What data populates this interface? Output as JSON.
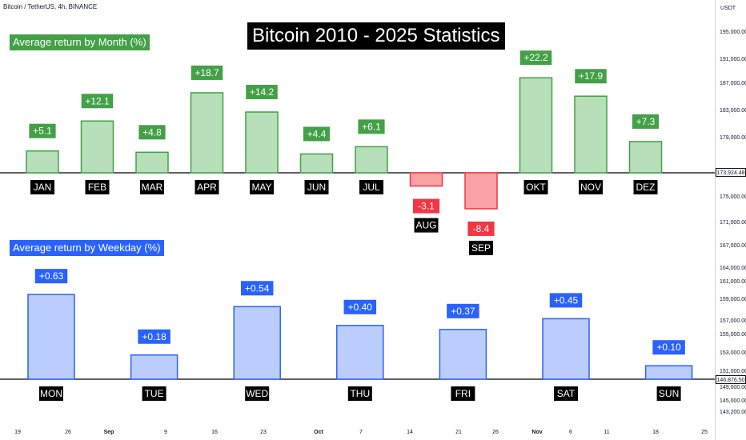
{
  "header": {
    "symbol": "Bitcoin / TetherUS, 4h, BINANCE",
    "title": "Bitcoin 2010 - 2025 Statistics",
    "currency": "USDT"
  },
  "price_axis": {
    "ticks": [
      "195,000.00",
      "191,000.00",
      "187,000.00",
      "183,000.00",
      "179,000.00",
      "175,000.00",
      "171,000.00",
      "167,000.00",
      "164,000.00",
      "161,000.00",
      "159,000.00",
      "157,000.00",
      "155,000.00",
      "153,000.00",
      "151,000.00",
      "149,000.00",
      "145,000.00",
      "143,200.00"
    ],
    "current_price_top": "173,924.48",
    "current_price_bottom": "146,876.50"
  },
  "time_axis": {
    "ticks": [
      {
        "label": "19",
        "bold": false
      },
      {
        "label": "26",
        "bold": false
      },
      {
        "label": "Sep",
        "bold": true
      },
      {
        "label": "9",
        "bold": false
      },
      {
        "label": "16",
        "bold": false
      },
      {
        "label": "23",
        "bold": false
      },
      {
        "label": "Oct",
        "bold": true
      },
      {
        "label": "7",
        "bold": false
      },
      {
        "label": "14",
        "bold": false
      },
      {
        "label": "21",
        "bold": false
      },
      {
        "label": "26",
        "bold": false
      },
      {
        "label": "Nov",
        "bold": true
      },
      {
        "label": "6",
        "bold": false
      },
      {
        "label": "11",
        "bold": false
      },
      {
        "label": "18",
        "bold": false
      },
      {
        "label": "25",
        "bold": false
      }
    ]
  },
  "chart_data": [
    {
      "type": "bar",
      "title": "Average return by Month (%)",
      "categories": [
        "JAN",
        "FEB",
        "MAR",
        "APR",
        "MAY",
        "JUN",
        "JUL",
        "AUG",
        "SEP",
        "OKT",
        "NOV",
        "DEZ"
      ],
      "values": [
        5.1,
        12.1,
        4.8,
        18.7,
        14.2,
        4.4,
        6.1,
        -3.1,
        -8.4,
        22.2,
        17.9,
        7.3
      ],
      "value_labels": [
        "+5.1",
        "+12.1",
        "+4.8",
        "+18.7",
        "+14.2",
        "+4.4",
        "+6.1",
        "-3.1",
        "-8.4",
        "+22.2",
        "+17.9",
        "+7.3"
      ],
      "colors": {
        "positive_fill": "#b7dfb9",
        "positive_stroke": "#43a047",
        "positive_label": "#43a047",
        "negative_fill": "#faa1a4",
        "negative_stroke": "#f23645",
        "negative_label": "#f23645"
      }
    },
    {
      "type": "bar",
      "title": "Average return by Weekday (%)",
      "categories": [
        "MON",
        "TUE",
        "WED",
        "THU",
        "FRI",
        "SAT",
        "SUN"
      ],
      "values": [
        0.63,
        0.18,
        0.54,
        0.4,
        0.37,
        0.45,
        0.1
      ],
      "value_labels": [
        "+0.63",
        "+0.18",
        "+0.54",
        "+0.40",
        "+0.37",
        "+0.45",
        "+0.10"
      ],
      "colors": {
        "positive_fill": "#bbcdfd",
        "positive_stroke": "#2962ff",
        "positive_label": "#2962ff"
      }
    }
  ]
}
